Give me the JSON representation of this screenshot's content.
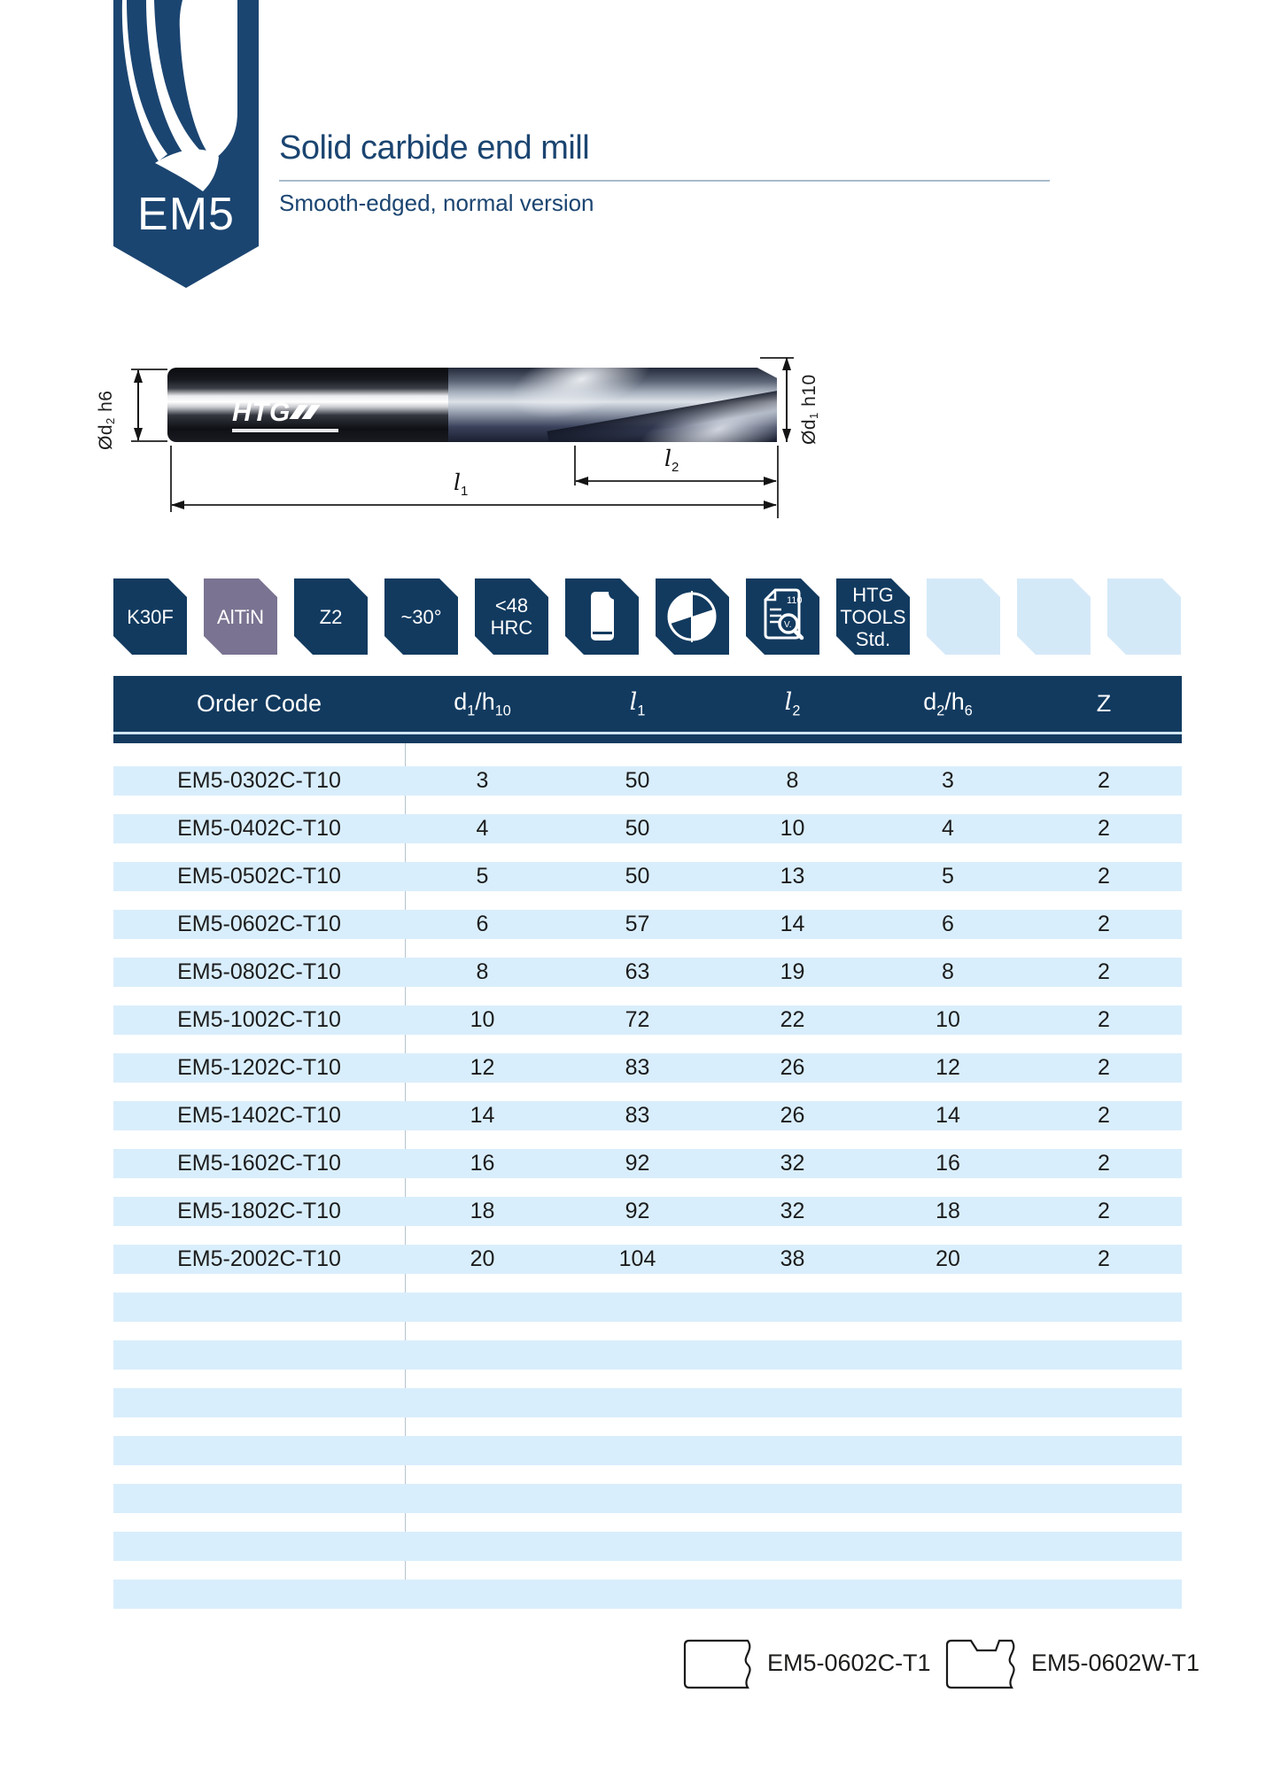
{
  "page": {
    "product_code": "EM5",
    "title": "Solid carbide end mill",
    "subtitle": "Smooth-edged, normal version"
  },
  "diagram": {
    "brand": "HTG",
    "shank_dia": {
      "t1": "Ød",
      "s1": "2",
      "t2": " h6"
    },
    "cut_dia": {
      "t1": "Ød",
      "s1": "1",
      "t2": " h10"
    },
    "overall_len": {
      "t1": "l",
      "s1": "1"
    },
    "flute_len": {
      "t1": "l",
      "s1": "2"
    }
  },
  "badges": [
    {
      "name": "badge-grade",
      "kind": "text",
      "color": "navy",
      "lines": [
        "K30F"
      ]
    },
    {
      "name": "badge-coating",
      "kind": "text",
      "color": "purple",
      "lines": [
        "AlTiN"
      ]
    },
    {
      "name": "badge-flutes",
      "kind": "text",
      "color": "navy",
      "lines": [
        "Z2"
      ]
    },
    {
      "name": "badge-helix-angle",
      "kind": "text",
      "color": "navy",
      "lines": [
        "~30°"
      ]
    },
    {
      "name": "badge-hardness",
      "kind": "text",
      "color": "navy",
      "lines": [
        "<48",
        "HRC"
      ]
    },
    {
      "name": "badge-mill-side-icon",
      "kind": "icon",
      "color": "navy",
      "icon": "icon-mill-side"
    },
    {
      "name": "badge-mill-front-icon",
      "kind": "icon",
      "color": "navy",
      "icon": "icon-mill-front"
    },
    {
      "name": "badge-cutting-data-icon",
      "kind": "icon",
      "color": "navy",
      "icon": "icon-cutting-data"
    },
    {
      "name": "badge-standard",
      "kind": "text",
      "color": "navy",
      "lines": [
        "HTG",
        "TOOLS",
        "Std."
      ]
    },
    {
      "name": "badge-empty-1",
      "kind": "empty",
      "color": "light"
    },
    {
      "name": "badge-empty-2",
      "kind": "empty",
      "color": "light"
    },
    {
      "name": "badge-empty-3",
      "kind": "empty",
      "color": "light"
    }
  ],
  "icon_texts": {
    "doc_number": "110",
    "doc_magnifier": "V."
  },
  "table": {
    "columns": [
      {
        "t1": "Order Code",
        "s1": "",
        "t2": "",
        "s2": ""
      },
      {
        "t1": "d",
        "s1": "1",
        "t2": "/h",
        "s2": "10"
      },
      {
        "t1": "l",
        "s1": "1",
        "t2": "",
        "s2": ""
      },
      {
        "t1": "l",
        "s1": "2",
        "t2": "",
        "s2": ""
      },
      {
        "t1": "d",
        "s1": "2",
        "t2": "/h",
        "s2": "6"
      },
      {
        "t1": "Z",
        "s1": "",
        "t2": "",
        "s2": ""
      }
    ],
    "rows": [
      {
        "code": "EM5-0302C-T10",
        "d1": "3",
        "l1": "50",
        "l2": "8",
        "d2": "3",
        "z": "2"
      },
      {
        "code": "EM5-0402C-T10",
        "d1": "4",
        "l1": "50",
        "l2": "10",
        "d2": "4",
        "z": "2"
      },
      {
        "code": "EM5-0502C-T10",
        "d1": "5",
        "l1": "50",
        "l2": "13",
        "d2": "5",
        "z": "2"
      },
      {
        "code": "EM5-0602C-T10",
        "d1": "6",
        "l1": "57",
        "l2": "14",
        "d2": "6",
        "z": "2"
      },
      {
        "code": "EM5-0802C-T10",
        "d1": "8",
        "l1": "63",
        "l2": "19",
        "d2": "8",
        "z": "2"
      },
      {
        "code": "EM5-1002C-T10",
        "d1": "10",
        "l1": "72",
        "l2": "22",
        "d2": "10",
        "z": "2"
      },
      {
        "code": "EM5-1202C-T10",
        "d1": "12",
        "l1": "83",
        "l2": "26",
        "d2": "12",
        "z": "2"
      },
      {
        "code": "EM5-1402C-T10",
        "d1": "14",
        "l1": "83",
        "l2": "26",
        "d2": "14",
        "z": "2"
      },
      {
        "code": "EM5-1602C-T10",
        "d1": "16",
        "l1": "92",
        "l2": "32",
        "d2": "16",
        "z": "2"
      },
      {
        "code": "EM5-1802C-T10",
        "d1": "18",
        "l1": "92",
        "l2": "32",
        "d2": "18",
        "z": "2"
      },
      {
        "code": "EM5-2002C-T10",
        "d1": "20",
        "l1": "104",
        "l2": "38",
        "d2": "20",
        "z": "2"
      }
    ],
    "empty_stripe_count": 7
  },
  "footer": {
    "variants": [
      {
        "label": "EM5-0602C-T1",
        "shank": "plain"
      },
      {
        "label": "EM5-0602W-T1",
        "shank": "weldon"
      }
    ]
  },
  "colors": {
    "navy": "#123a5f",
    "logo_navy": "#1b4571",
    "coating_purple": "#7a7391",
    "stripe_blue": "#d9eefc",
    "empty_badge_blue": "#d4e9f8"
  }
}
